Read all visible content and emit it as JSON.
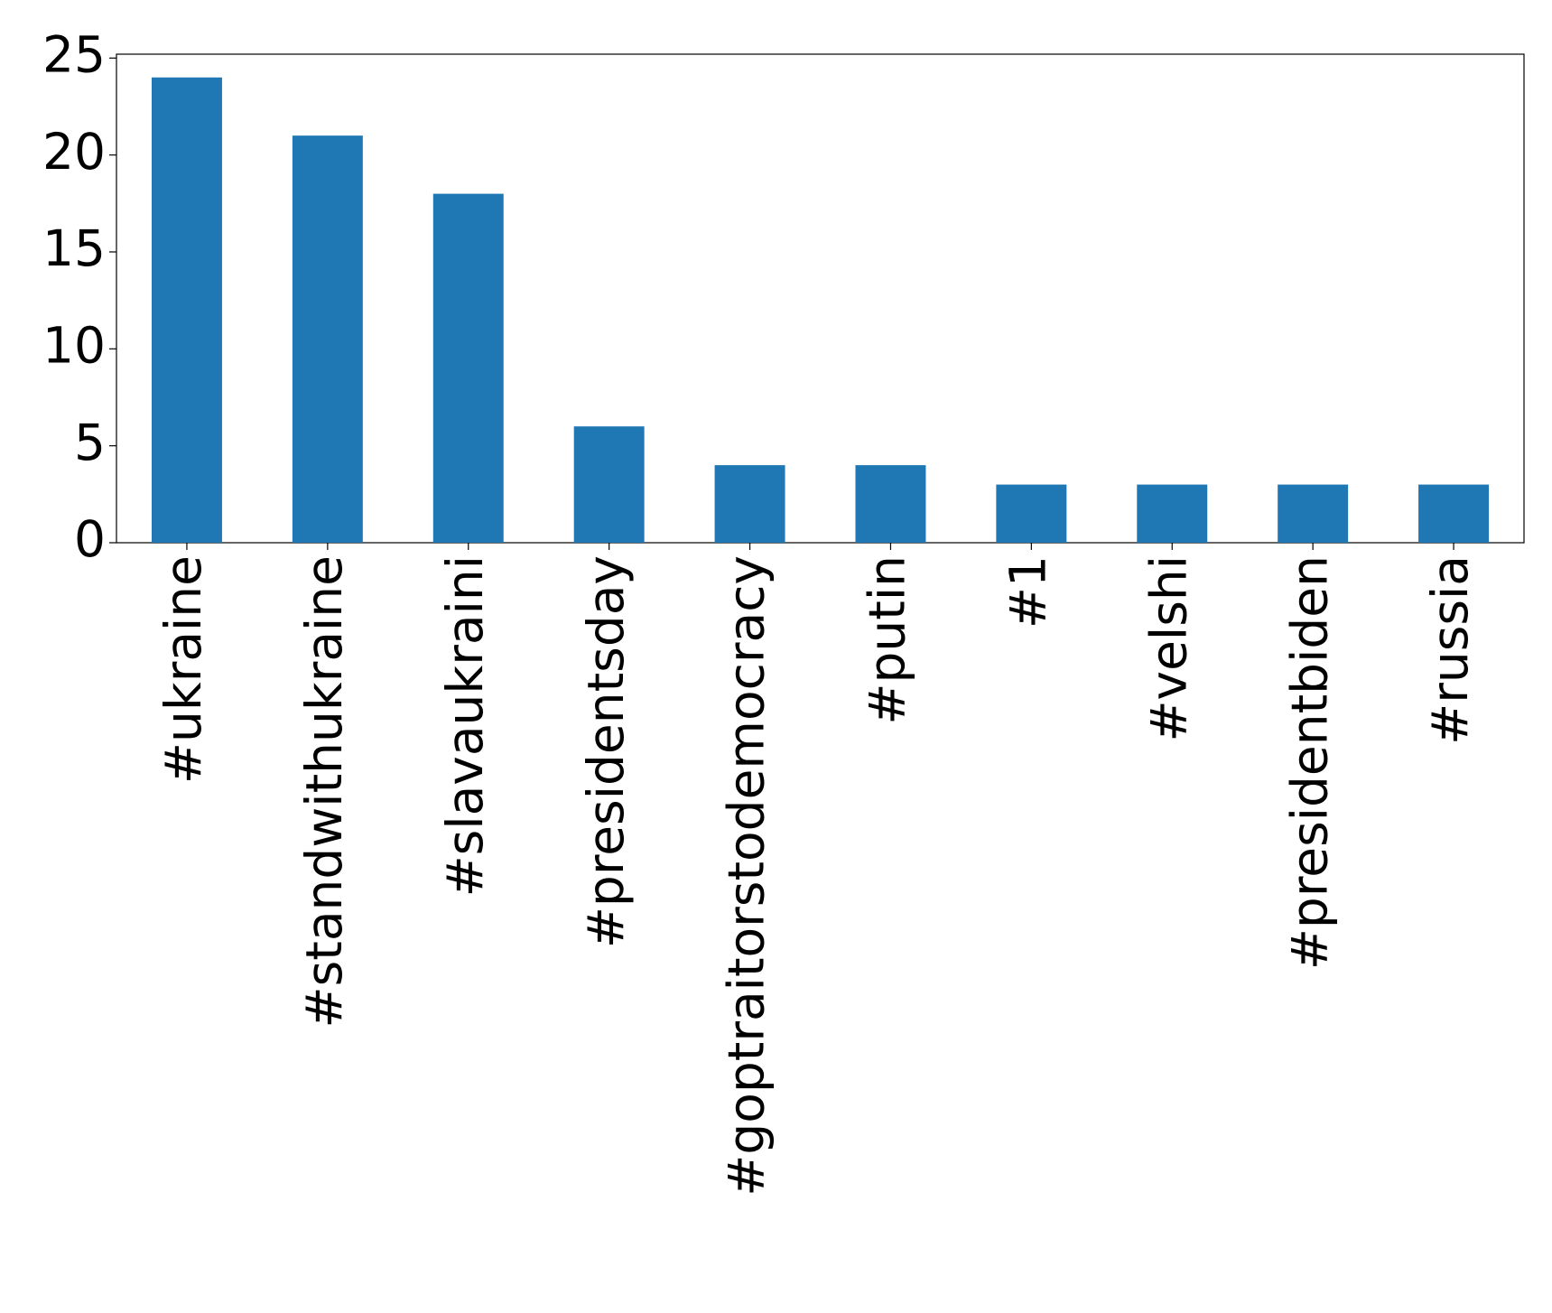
{
  "chart_data": {
    "type": "bar",
    "categories": [
      "#ukraine",
      "#standwithukraine",
      "#slavaukraini",
      "#presidentsday",
      "#goptraitorstodemocracy",
      "#putin",
      "#1",
      "#velshi",
      "#presidentbiden",
      "#russia"
    ],
    "values": [
      24,
      21,
      18,
      6,
      4,
      4,
      3,
      3,
      3,
      3
    ],
    "color": "#1f77b4",
    "ylim": [
      0,
      25.2
    ],
    "yticks": [
      0,
      5,
      10,
      15,
      20,
      25
    ],
    "grid": false
  }
}
